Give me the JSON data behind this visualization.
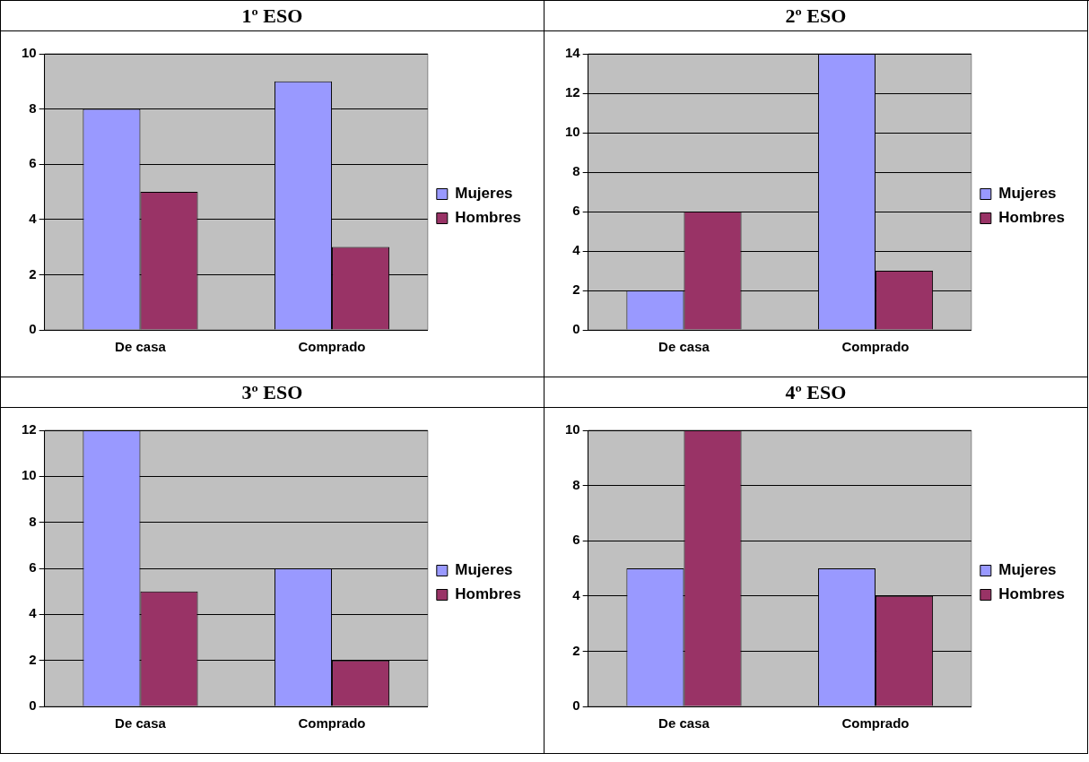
{
  "chart_data": [
    {
      "type": "bar",
      "title": "1º ESO",
      "categories": [
        "De casa",
        "Comprado"
      ],
      "series": [
        {
          "name": "Mujeres",
          "color": "#9999ff",
          "values": [
            8,
            9
          ]
        },
        {
          "name": "Hombres",
          "color": "#993366",
          "values": [
            5,
            3
          ]
        }
      ],
      "ylim": [
        0,
        10
      ],
      "yticks": [
        0,
        2,
        4,
        6,
        8,
        10
      ],
      "grid": "y",
      "legend": "right"
    },
    {
      "type": "bar",
      "title": "2º ESO",
      "categories": [
        "De casa",
        "Comprado"
      ],
      "series": [
        {
          "name": "Mujeres",
          "color": "#9999ff",
          "values": [
            2,
            14
          ]
        },
        {
          "name": "Hombres",
          "color": "#993366",
          "values": [
            6,
            3
          ]
        }
      ],
      "ylim": [
        0,
        14
      ],
      "yticks": [
        0,
        2,
        4,
        6,
        8,
        10,
        12,
        14
      ],
      "grid": "y",
      "legend": "right"
    },
    {
      "type": "bar",
      "title": "3º ESO",
      "categories": [
        "De casa",
        "Comprado"
      ],
      "series": [
        {
          "name": "Mujeres",
          "color": "#9999ff",
          "values": [
            12,
            6
          ]
        },
        {
          "name": "Hombres",
          "color": "#993366",
          "values": [
            5,
            2
          ]
        }
      ],
      "ylim": [
        0,
        12
      ],
      "yticks": [
        0,
        2,
        4,
        6,
        8,
        10,
        12
      ],
      "grid": "y",
      "legend": "right"
    },
    {
      "type": "bar",
      "title": "4º ESO",
      "categories": [
        "De casa",
        "Comprado"
      ],
      "series": [
        {
          "name": "Mujeres",
          "color": "#9999ff",
          "values": [
            5,
            5
          ]
        },
        {
          "name": "Hombres",
          "color": "#993366",
          "values": [
            10,
            4
          ]
        }
      ],
      "ylim": [
        0,
        10
      ],
      "yticks": [
        0,
        2,
        4,
        6,
        8,
        10
      ],
      "grid": "y",
      "legend": "right"
    }
  ]
}
